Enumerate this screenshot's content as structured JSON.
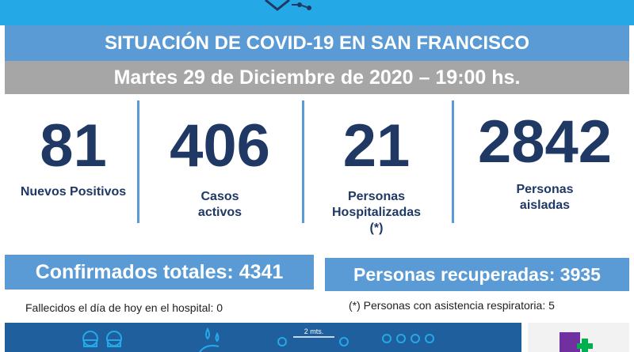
{
  "header": {
    "title": "SITUACIÓN DE COVID-19 EN SAN FRANCISCO",
    "date": "Martes 29 de Diciembre de 2020 – 19:00 hs."
  },
  "stats": [
    {
      "value": "81",
      "label_lines": [
        "Nuevos Positivos"
      ]
    },
    {
      "value": "406",
      "label_lines": [
        "Casos",
        "activos"
      ]
    },
    {
      "value": "21",
      "label_lines": [
        "Personas",
        "Hospitalizadas",
        "(*)"
      ]
    },
    {
      "value": "2842",
      "label_lines": [
        "Personas",
        "aisladas"
      ]
    }
  ],
  "totals": {
    "confirmados": "Confirmados totales: 4341",
    "recuperadas": "Personas recuperadas: 3935"
  },
  "notes": {
    "fallecidos": "Fallecidos el día de hoy en el hospital: 0",
    "asistencia": "(*) Personas con asistencia respiratoria: 5"
  },
  "bottom": {
    "distance_label": "2 mts."
  },
  "colors": {
    "title_bg": "#5b9bd5",
    "date_bg": "#a6a6a6",
    "number": "#1f3864",
    "top_band": "#25a8e6",
    "bottom_band": "#1f5f9e"
  },
  "icons": [
    "virus-logo-icon",
    "masks-icon",
    "hand-wash-icon",
    "distance-icon",
    "group-icon",
    "health-cross-icon"
  ]
}
